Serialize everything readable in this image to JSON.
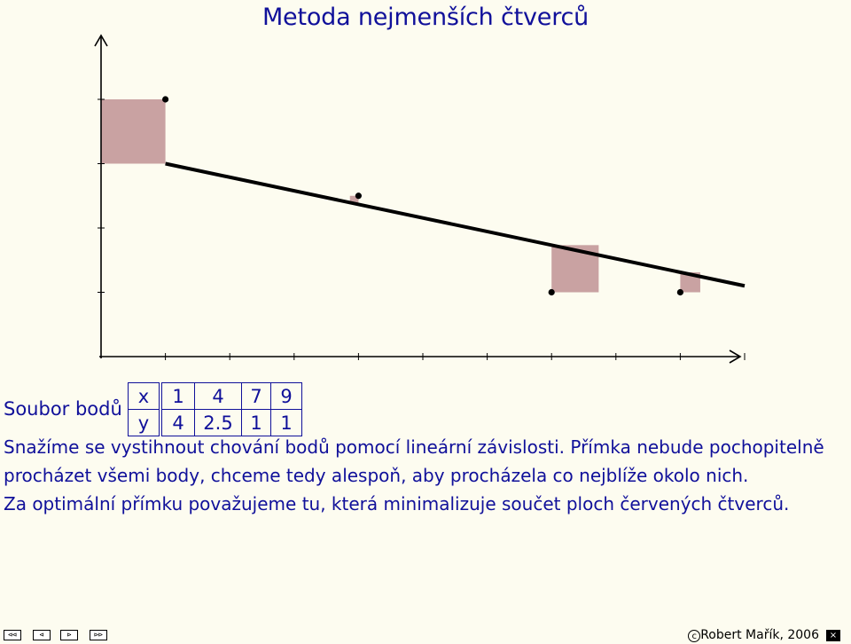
{
  "page": {
    "title": "Metoda nejmenších čtverců",
    "dataset_label": "Soubor bodů",
    "paragraph": [
      "Snažíme se vystihnout chování bodů pomocí lineární závislosti. Přímka nebude pochopitelně",
      "procházet všemi body, chceme tedy alespoň, aby procházela co nejblíže okolo nich.",
      "Za optimální přímku považujeme tu, která minimalizuje součet ploch červených čtverců."
    ],
    "copyright": "Robert Mařík, 2006",
    "copyright_symbol": "c"
  },
  "table": {
    "x_label": "x",
    "y_label": "y",
    "x": [
      "1",
      "4",
      "7",
      "9"
    ],
    "y": [
      "4",
      "2.5",
      "1",
      "1"
    ]
  },
  "nav": {
    "first": "⊲⊲",
    "prev": "⊲",
    "next": "⊳",
    "last": "⊳⊳",
    "close": "×"
  },
  "chart_data": {
    "type": "scatter",
    "points": [
      {
        "x": 1,
        "y": 4
      },
      {
        "x": 4,
        "y": 2.5
      },
      {
        "x": 7,
        "y": 1
      },
      {
        "x": 9,
        "y": 1
      }
    ],
    "line": {
      "x": [
        1,
        10
      ],
      "y": [
        3.0,
        1.1
      ]
    },
    "xlim": [
      0,
      10
    ],
    "ylim": [
      0,
      4
    ],
    "xticks": [
      1,
      2,
      3,
      4,
      5,
      6,
      7,
      8,
      9,
      10
    ],
    "yticks": [
      1,
      2,
      3,
      4
    ],
    "square_color": "#c9a2a2",
    "line_color": "#000000",
    "grid": false
  }
}
